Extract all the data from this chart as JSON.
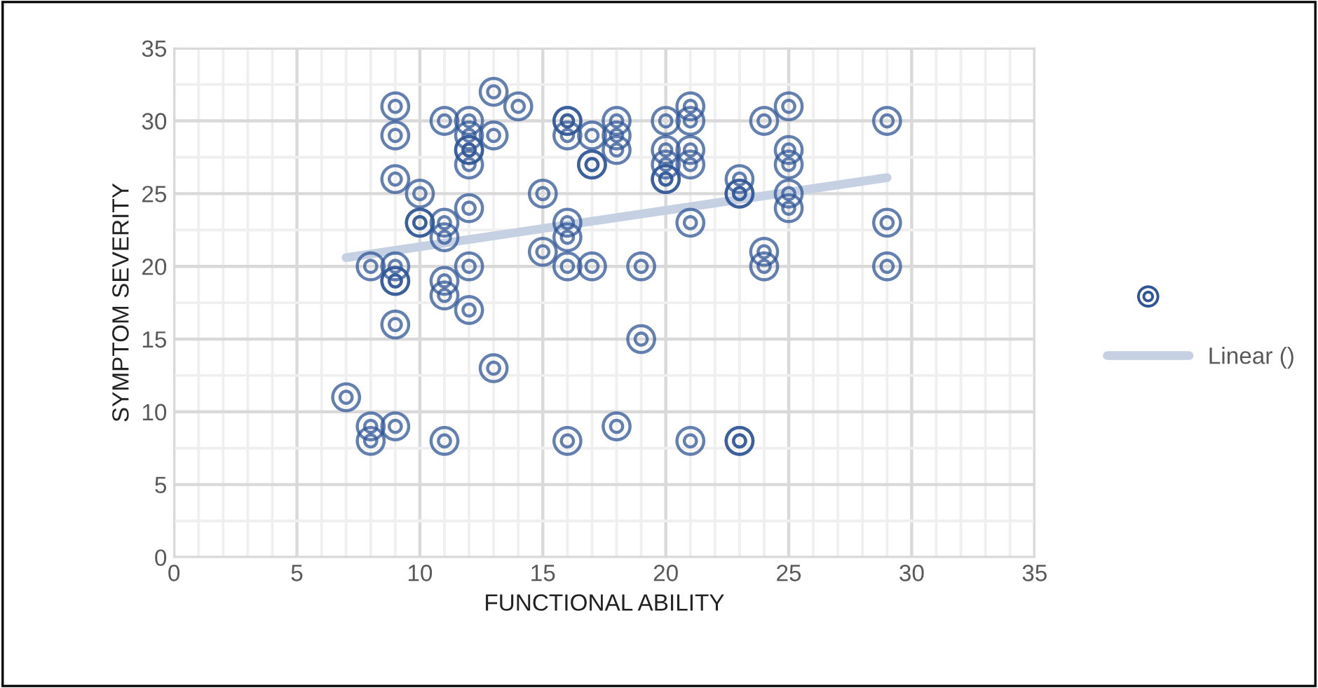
{
  "chart_data": {
    "type": "scatter",
    "xlabel": "FUNCTIONAL ABILITY",
    "ylabel": "SYMPTOM SEVERITY",
    "xlim": [
      0,
      35
    ],
    "ylim": [
      0,
      35
    ],
    "xticks": [
      0,
      5,
      10,
      15,
      20,
      25,
      30,
      35
    ],
    "yticks": [
      0,
      5,
      10,
      15,
      20,
      25,
      30,
      35
    ],
    "grid": true,
    "legend": "right",
    "series": [
      {
        "marker": "circle",
        "color": "#2f5597",
        "x": [
          7,
          8,
          8,
          8,
          9,
          9,
          9,
          9,
          9,
          9,
          9,
          9,
          10,
          10,
          10,
          11,
          11,
          11,
          11,
          11,
          11,
          12,
          12,
          12,
          12,
          12,
          12,
          12,
          12,
          13,
          13,
          13,
          14,
          15,
          15,
          16,
          16,
          16,
          16,
          16,
          16,
          16,
          17,
          17,
          17,
          17,
          18,
          18,
          18,
          18,
          19,
          19,
          20,
          20,
          20,
          20,
          20,
          21,
          21,
          21,
          21,
          21,
          21,
          23,
          23,
          23,
          23,
          23,
          24,
          24,
          24,
          25,
          25,
          25,
          25,
          25,
          29,
          29,
          29
        ],
        "values": [
          11,
          20,
          9,
          8,
          31,
          29,
          26,
          20,
          19,
          19,
          16,
          9,
          25,
          23,
          23,
          30,
          23,
          22,
          19,
          18,
          8,
          30,
          29,
          28,
          28,
          27,
          24,
          20,
          17,
          32,
          29,
          13,
          31,
          25,
          21,
          30,
          30,
          29,
          23,
          22,
          20,
          8,
          29,
          27,
          27,
          20,
          30,
          29,
          28,
          9,
          20,
          15,
          30,
          28,
          27,
          26,
          26,
          31,
          30,
          28,
          27,
          23,
          8,
          26,
          25,
          25,
          8,
          8,
          30,
          21,
          20,
          31,
          28,
          27,
          25,
          24,
          30,
          23,
          20
        ]
      },
      {
        "type": "line",
        "marker": "none",
        "name": "Linear ()",
        "color": "#c5d0e3",
        "x": [
          7,
          29
        ],
        "values": [
          20.6,
          26.1
        ]
      }
    ]
  }
}
